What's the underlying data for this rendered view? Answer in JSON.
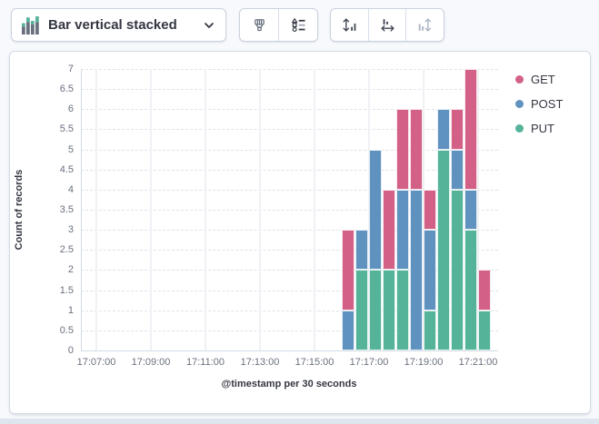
{
  "toolbar": {
    "chart_type_button": {
      "label": "Bar vertical stacked",
      "icon": "stacked-bar-chart-icon",
      "chevron": "chevron-down-icon"
    },
    "style_buttons": [
      {
        "icon": "paint-brush-icon"
      },
      {
        "icon": "display-options-icon"
      }
    ],
    "axis_buttons": [
      {
        "icon": "vertical-axis-settings-icon",
        "disabled": false
      },
      {
        "icon": "horizontal-axis-settings-icon",
        "disabled": false
      },
      {
        "icon": "right-axis-settings-icon",
        "disabled": true
      }
    ]
  },
  "chart_data": {
    "type": "bar",
    "stacked": true,
    "orientation": "vertical",
    "title": "",
    "xlabel": "@timestamp per 30 seconds",
    "ylabel": "Count of records",
    "ylim": [
      0,
      7
    ],
    "y_tick_step": 0.5,
    "y_tick_labels": [
      "0",
      "0.5",
      "1",
      "1.5",
      "2",
      "2.5",
      "3",
      "3.5",
      "4",
      "4.5",
      "5",
      "5.5",
      "6",
      "6.5",
      "7"
    ],
    "x_tick_labels": [
      "17:07:00",
      "17:09:00",
      "17:11:00",
      "17:13:00",
      "17:15:00",
      "17:17:00",
      "17:19:00",
      "17:21:00"
    ],
    "categories": [
      "17:16:00",
      "17:16:30",
      "17:17:00",
      "17:17:30",
      "17:18:00",
      "17:18:30",
      "17:19:00",
      "17:19:30",
      "17:20:00",
      "17:20:30",
      "17:21:00"
    ],
    "series": [
      {
        "name": "GET",
        "color": "#D36086",
        "values": [
          2,
          0,
          0,
          2,
          2,
          2,
          1,
          0,
          1,
          3,
          1
        ]
      },
      {
        "name": "POST",
        "color": "#6092C0",
        "values": [
          1,
          1,
          3,
          0,
          2,
          4,
          2,
          1,
          1,
          1,
          0
        ]
      },
      {
        "name": "PUT",
        "color": "#54B399",
        "values": [
          0,
          2,
          2,
          2,
          2,
          0,
          1,
          5,
          4,
          3,
          1
        ]
      }
    ],
    "stack_order_bottom_to_top": [
      "PUT",
      "POST",
      "GET"
    ],
    "legend": {
      "position": "right",
      "items": [
        "GET",
        "POST",
        "PUT"
      ]
    },
    "grid": {
      "horizontal": "dashed",
      "vertical": "solid"
    }
  },
  "colors": {
    "get": "#D36086",
    "post": "#6092C0",
    "put": "#54B399",
    "text": "#343741",
    "muted_text": "#69707D",
    "border": "#d3dae6",
    "page_bg": "#f7f9fc",
    "panel_bg": "#ffffff"
  }
}
